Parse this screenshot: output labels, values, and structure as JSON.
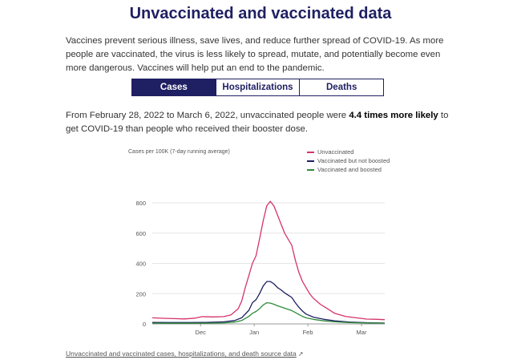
{
  "page": {
    "title": "Unvaccinated and vaccinated data",
    "intro": "Vaccines prevent serious illness, save lives, and reduce further spread of COVID-19. As more people are vaccinated, the virus is less likely to spread, mutate, and potentially become even more dangerous. Vaccines will help put an end to the pandemic.",
    "tabs": [
      {
        "label": "Cases",
        "active": true
      },
      {
        "label": "Hospitalizations",
        "active": false
      },
      {
        "label": "Deaths",
        "active": false
      }
    ],
    "summary_before": "From February 28, 2022 to March 6, 2022, unvaccinated people were ",
    "summary_bold": "4.4 times more likely",
    "summary_after": " to get COVID-19 than people who received their booster dose.",
    "source_link": "Unvaccinated and vaccinated cases, hospitalizations, and death source data",
    "external_icon": "external-link-icon"
  },
  "chart_data": {
    "type": "line",
    "ylabel": "Cases per 100K (7-day running average)",
    "yticks": [
      0,
      200,
      400,
      600,
      800
    ],
    "ylim": [
      0,
      850
    ],
    "xticks": [
      "Dec",
      "Jan",
      "Feb",
      "Mar"
    ],
    "xlim": [
      0,
      130
    ],
    "xtick_positions": [
      27,
      57,
      87,
      117
    ],
    "grid": "horizontal",
    "legend_position": "top-right",
    "series": [
      {
        "name": "Unvaccinated",
        "color": "#d6336c",
        "points": [
          [
            0,
            40
          ],
          [
            6,
            37
          ],
          [
            12,
            35
          ],
          [
            18,
            33
          ],
          [
            24,
            38
          ],
          [
            28,
            48
          ],
          [
            34,
            46
          ],
          [
            40,
            48
          ],
          [
            44,
            60
          ],
          [
            48,
            100
          ],
          [
            50,
            150
          ],
          [
            52,
            240
          ],
          [
            54,
            320
          ],
          [
            56,
            400
          ],
          [
            58,
            450
          ],
          [
            60,
            560
          ],
          [
            62,
            680
          ],
          [
            64,
            780
          ],
          [
            66,
            810
          ],
          [
            68,
            780
          ],
          [
            70,
            720
          ],
          [
            72,
            660
          ],
          [
            74,
            600
          ],
          [
            76,
            560
          ],
          [
            78,
            520
          ],
          [
            80,
            420
          ],
          [
            82,
            340
          ],
          [
            84,
            280
          ],
          [
            86,
            240
          ],
          [
            88,
            200
          ],
          [
            90,
            170
          ],
          [
            94,
            130
          ],
          [
            98,
            100
          ],
          [
            102,
            70
          ],
          [
            108,
            50
          ],
          [
            114,
            40
          ],
          [
            120,
            32
          ],
          [
            126,
            30
          ],
          [
            130,
            28
          ]
        ]
      },
      {
        "name": "Vaccinated but not boosted",
        "color": "#1f1f63",
        "points": [
          [
            0,
            10
          ],
          [
            10,
            9
          ],
          [
            20,
            9
          ],
          [
            30,
            10
          ],
          [
            40,
            14
          ],
          [
            46,
            22
          ],
          [
            50,
            40
          ],
          [
            54,
            90
          ],
          [
            56,
            140
          ],
          [
            58,
            160
          ],
          [
            60,
            200
          ],
          [
            62,
            250
          ],
          [
            64,
            280
          ],
          [
            66,
            280
          ],
          [
            68,
            265
          ],
          [
            70,
            240
          ],
          [
            72,
            225
          ],
          [
            74,
            205
          ],
          [
            76,
            190
          ],
          [
            78,
            175
          ],
          [
            80,
            140
          ],
          [
            82,
            110
          ],
          [
            84,
            85
          ],
          [
            86,
            65
          ],
          [
            90,
            45
          ],
          [
            96,
            30
          ],
          [
            102,
            20
          ],
          [
            110,
            12
          ],
          [
            120,
            8
          ],
          [
            130,
            6
          ]
        ]
      },
      {
        "name": "Vaccinated and boosted",
        "color": "#2e8b3a",
        "points": [
          [
            0,
            5
          ],
          [
            10,
            4
          ],
          [
            20,
            4
          ],
          [
            30,
            5
          ],
          [
            40,
            7
          ],
          [
            46,
            12
          ],
          [
            50,
            22
          ],
          [
            54,
            50
          ],
          [
            56,
            70
          ],
          [
            58,
            82
          ],
          [
            60,
            100
          ],
          [
            62,
            125
          ],
          [
            64,
            140
          ],
          [
            66,
            138
          ],
          [
            68,
            130
          ],
          [
            70,
            120
          ],
          [
            72,
            112
          ],
          [
            74,
            104
          ],
          [
            76,
            96
          ],
          [
            78,
            88
          ],
          [
            80,
            75
          ],
          [
            82,
            62
          ],
          [
            84,
            50
          ],
          [
            86,
            40
          ],
          [
            90,
            30
          ],
          [
            96,
            20
          ],
          [
            102,
            14
          ],
          [
            110,
            9
          ],
          [
            120,
            6
          ],
          [
            130,
            5
          ]
        ]
      }
    ]
  }
}
